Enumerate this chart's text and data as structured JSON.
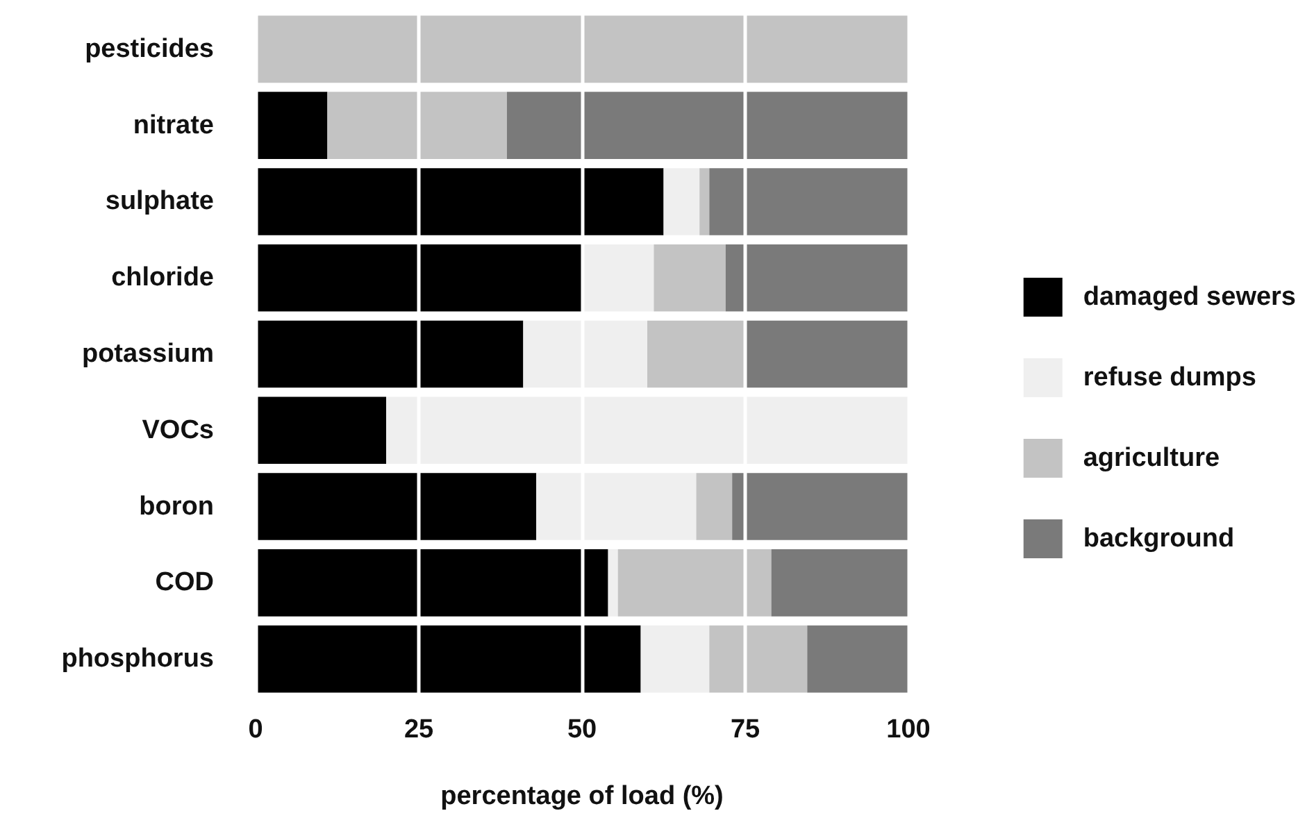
{
  "chart_data": {
    "type": "bar",
    "orientation": "horizontal",
    "stacked": true,
    "xlabel": "percentage of load (%)",
    "categories": [
      "pesticides",
      "nitrate",
      "sulphate",
      "chloride",
      "potassium",
      "VOCs",
      "boron",
      "COD",
      "phosphorus"
    ],
    "series": [
      {
        "name": "damaged sewers",
        "color": "#000000",
        "values": [
          0,
          11,
          62.5,
          50,
          41,
          20,
          43,
          54,
          59
        ]
      },
      {
        "name": "refuse dumps",
        "color": "#efefef",
        "values": [
          0,
          0,
          5.5,
          11,
          19,
          80,
          24.5,
          1.5,
          10.5
        ]
      },
      {
        "name": "agriculture",
        "color": "#c3c3c3",
        "values": [
          100,
          27.5,
          1.5,
          11,
          15,
          0,
          5.5,
          23.5,
          15
        ]
      },
      {
        "name": "background",
        "color": "#7a7a7a",
        "values": [
          0,
          61.5,
          30.5,
          28,
          25,
          0,
          27,
          21,
          15.5
        ]
      }
    ],
    "xlim": [
      0,
      100
    ],
    "xticks": [
      0,
      25,
      50,
      75,
      100
    ],
    "grid": "x",
    "legend": "right"
  }
}
